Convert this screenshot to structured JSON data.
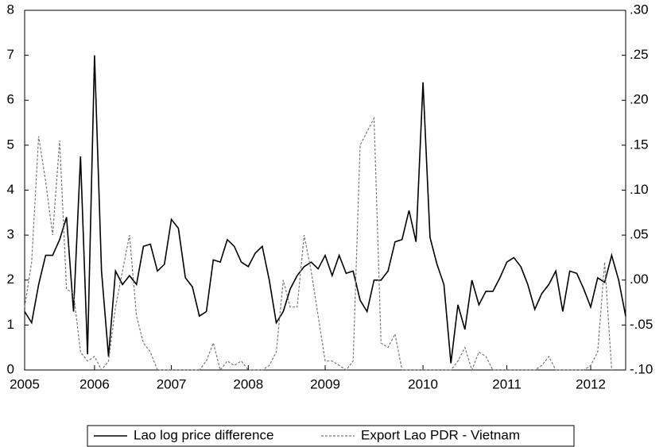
{
  "chart_data": {
    "type": "line",
    "categories": [
      "2005",
      null,
      null,
      null,
      null,
      null,
      null,
      null,
      null,
      null,
      "2006",
      null,
      null,
      null,
      null,
      null,
      null,
      null,
      null,
      null,
      null,
      "2007",
      null,
      null,
      null,
      null,
      null,
      null,
      null,
      null,
      null,
      null,
      "2008",
      null,
      null,
      null,
      null,
      null,
      null,
      null,
      null,
      null,
      null,
      "2009",
      null,
      null,
      null,
      null,
      null,
      null,
      null,
      null,
      null,
      null,
      null,
      null,
      null,
      "2010",
      null,
      null,
      null,
      null,
      null,
      null,
      null,
      null,
      null,
      null,
      null,
      "2011",
      null,
      null,
      null,
      null,
      null,
      null,
      null,
      null,
      null,
      null,
      null,
      "2012",
      null,
      null,
      null,
      null,
      null
    ],
    "series": [
      {
        "name": "Lao log price difference",
        "color": "#000000",
        "dash": false,
        "values": [
          1.3,
          1.05,
          1.9,
          2.55,
          2.55,
          2.9,
          3.4,
          1.3,
          4.75,
          0.35,
          7.0,
          2.2,
          0.3,
          2.2,
          1.9,
          2.1,
          1.9,
          2.75,
          2.8,
          2.2,
          2.35,
          3.35,
          3.15,
          2.05,
          1.85,
          1.2,
          1.3,
          2.45,
          2.4,
          2.9,
          2.75,
          2.4,
          2.3,
          2.6,
          2.75,
          2.0,
          1.05,
          1.3,
          1.8,
          2.1,
          2.3,
          2.4,
          2.25,
          2.55,
          2.1,
          2.55,
          2.15,
          2.2,
          1.55,
          1.3,
          2.0,
          2.0,
          2.2,
          2.85,
          2.9,
          3.55,
          2.85,
          6.4,
          2.95,
          2.35,
          1.9,
          0.15,
          1.45,
          0.9,
          2.0,
          1.45,
          1.75,
          1.75,
          2.05,
          2.4,
          2.5,
          2.3,
          1.9,
          1.35,
          1.7,
          1.9,
          2.2,
          1.3,
          2.2,
          2.15,
          1.8,
          1.4,
          2.05,
          1.95,
          2.55,
          2.0,
          1.2
        ]
      },
      {
        "name": "Export Lao PDR - Vietnam",
        "color": "#777777",
        "dash": true,
        "axis": "y2",
        "values": [
          -0.03,
          0.02,
          0.16,
          0.11,
          0.05,
          0.155,
          -0.01,
          -0.015,
          -0.08,
          -0.09,
          -0.085,
          -0.1,
          -0.09,
          -0.03,
          0.01,
          0.05,
          -0.04,
          -0.07,
          -0.08,
          -0.1,
          -0.1,
          -0.1,
          -0.1,
          -0.1,
          -0.1,
          -0.1,
          -0.09,
          -0.07,
          -0.1,
          -0.09,
          -0.095,
          -0.09,
          -0.1,
          -0.1,
          -0.1,
          -0.095,
          -0.08,
          0.0,
          -0.03,
          -0.03,
          0.05,
          0.01,
          -0.04,
          -0.09,
          -0.09,
          -0.095,
          -0.1,
          -0.09,
          0.15,
          0.165,
          0.18,
          -0.07,
          -0.075,
          -0.06,
          -0.1,
          -0.1,
          -0.1,
          -0.1,
          -0.1,
          -0.1,
          -0.1,
          -0.1,
          -0.09,
          -0.075,
          -0.1,
          -0.08,
          -0.085,
          -0.1,
          -0.1,
          -0.1,
          -0.1,
          -0.1,
          -0.1,
          -0.1,
          -0.095,
          -0.085,
          -0.1,
          -0.1,
          -0.1,
          -0.1,
          -0.1,
          -0.095,
          -0.08,
          0.02,
          -0.1,
          null,
          null
        ]
      }
    ],
    "ylim": [
      0,
      8
    ],
    "yticks": [
      0,
      1,
      2,
      3,
      4,
      5,
      6,
      7,
      8
    ],
    "y2lim": [
      -0.1,
      0.3
    ],
    "y2ticks": [
      {
        "value": -0.1,
        "label": "-.10"
      },
      {
        "value": -0.05,
        "label": "-.05"
      },
      {
        "value": 0,
        "label": ".00"
      },
      {
        "value": 0.05,
        "label": ".05"
      },
      {
        "value": 0.1,
        "label": ".10"
      },
      {
        "value": 0.15,
        "label": ".15"
      },
      {
        "value": 0.2,
        "label": ".20"
      },
      {
        "value": 0.25,
        "label": ".25"
      },
      {
        "value": 0.3,
        "label": ".30"
      }
    ],
    "legend": "bottom"
  }
}
